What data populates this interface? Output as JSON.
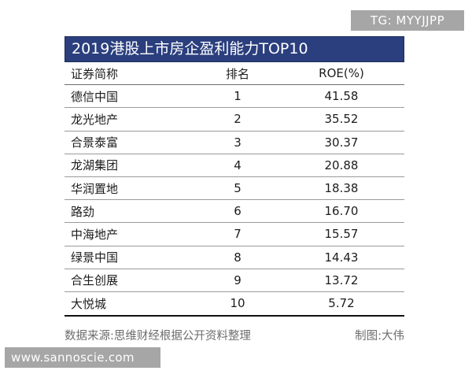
{
  "watermark_top": "TG: MYYJJPP",
  "watermark_bottom": "www.sannoscie.com",
  "table": {
    "title": "2019港股上市房企盈利能力TOP10",
    "headers": {
      "name": "证券简称",
      "rank": "排名",
      "roe": "ROE(%)"
    },
    "rows": [
      {
        "name": "德信中国",
        "rank": "1",
        "roe": "41.58"
      },
      {
        "name": "龙光地产",
        "rank": "2",
        "roe": "35.52"
      },
      {
        "name": "合景泰富",
        "rank": "3",
        "roe": "30.37"
      },
      {
        "name": "龙湖集团",
        "rank": "4",
        "roe": "20.88"
      },
      {
        "name": "华润置地",
        "rank": "5",
        "roe": "18.38"
      },
      {
        "name": "路劲",
        "rank": "6",
        "roe": "16.70"
      },
      {
        "name": "中海地产",
        "rank": "7",
        "roe": "15.57"
      },
      {
        "name": "绿景中国",
        "rank": "8",
        "roe": "14.43"
      },
      {
        "name": "合生创展",
        "rank": "9",
        "roe": "13.72"
      },
      {
        "name": "大悦城",
        "rank": "10",
        "roe": "5.72"
      }
    ]
  },
  "footer": {
    "source": "数据来源:思维财经根据公开资料整理",
    "credit": "制图:大伟"
  }
}
